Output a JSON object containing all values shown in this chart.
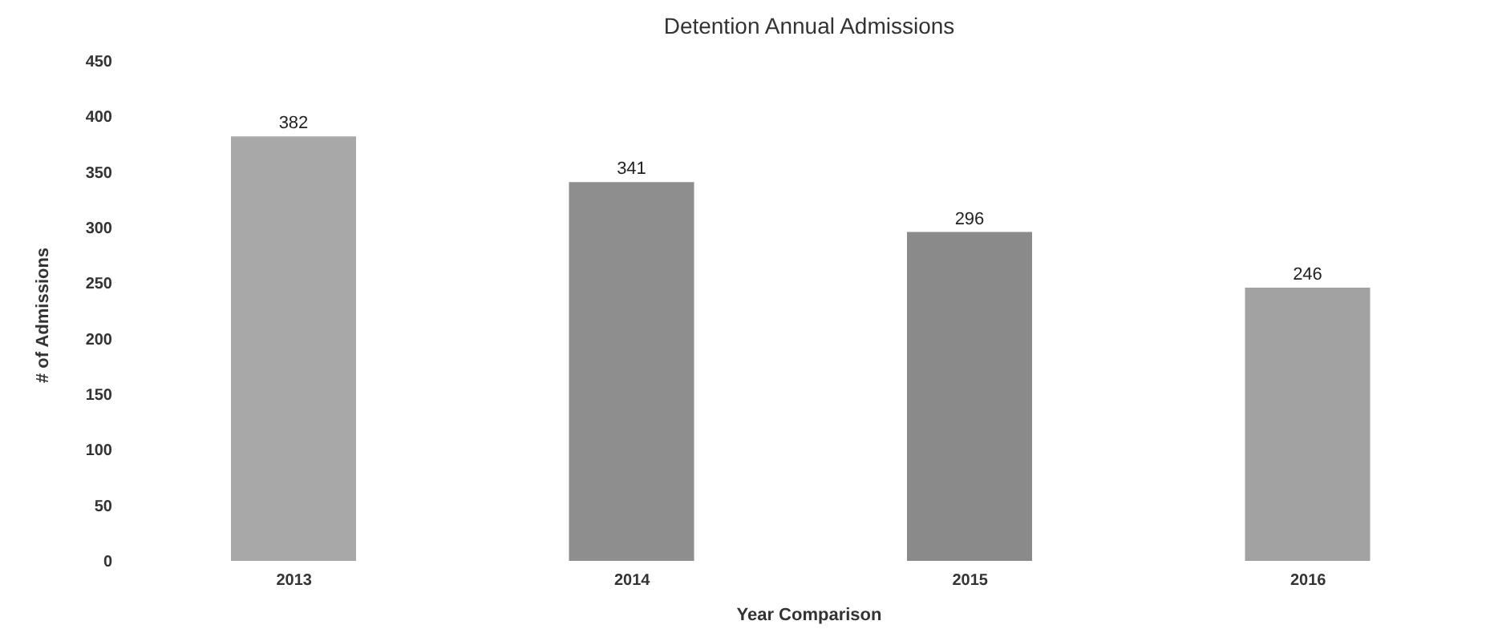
{
  "chart_data": {
    "type": "bar",
    "title": "Detention Annual Admissions",
    "xlabel": "Year Comparison",
    "ylabel": "# of Admissions",
    "categories": [
      "2013",
      "2014",
      "2015",
      "2016"
    ],
    "values": [
      382,
      341,
      296,
      246
    ],
    "colors": [
      "#a8a8a8",
      "#8e8e8e",
      "#8a8a8a",
      "#a2a2a2"
    ],
    "ylim": [
      0,
      450
    ],
    "yticks": [
      0,
      50,
      100,
      150,
      200,
      250,
      300,
      350,
      400,
      450
    ],
    "data_labels": true,
    "grid": false,
    "legend": false
  }
}
